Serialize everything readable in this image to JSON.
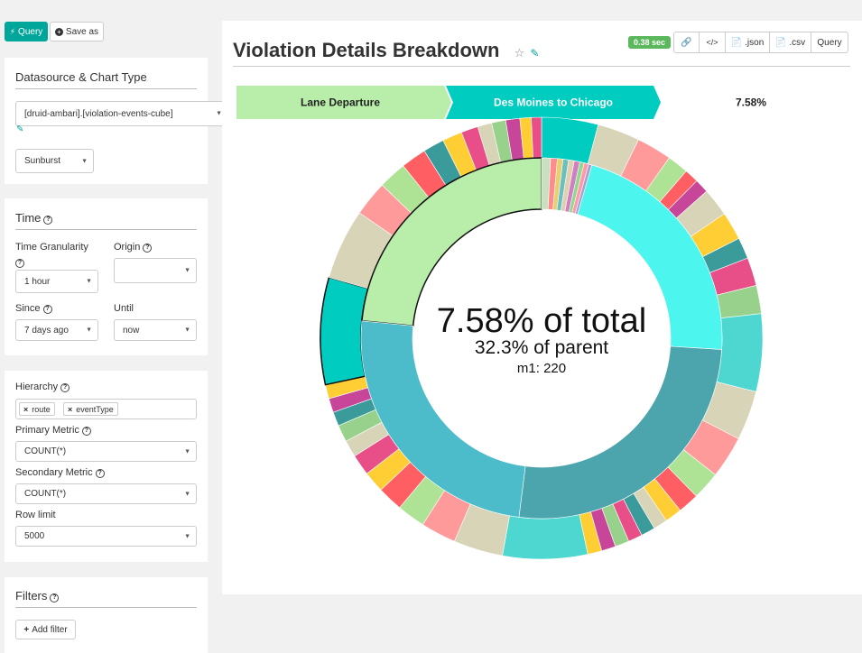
{
  "toolbar": {
    "query_label": "Query",
    "save_as_label": "Save as"
  },
  "datasource_panel": {
    "title": "Datasource & Chart Type",
    "datasource_value": "[druid-ambari].[violation-events-cube]",
    "chart_type_value": "Sunburst"
  },
  "time_panel": {
    "title": "Time",
    "granularity_label": "Time Granularity",
    "granularity_value": "1 hour",
    "origin_label": "Origin",
    "origin_value": "",
    "since_label": "Since",
    "since_value": "7 days ago",
    "until_label": "Until",
    "until_value": "now"
  },
  "query_panel": {
    "hierarchy_label": "Hierarchy",
    "hierarchy_tags": [
      "route",
      "eventType"
    ],
    "primary_metric_label": "Primary Metric",
    "primary_metric_value": "COUNT(*)",
    "secondary_metric_label": "Secondary Metric",
    "secondary_metric_value": "COUNT(*)",
    "row_limit_label": "Row limit",
    "row_limit_value": "5000"
  },
  "filters_panel": {
    "title": "Filters",
    "add_filter_label": "Add filter"
  },
  "chart_header": {
    "title": "Violation Details Breakdown",
    "timing_badge": "0.38 sec",
    "json_label": ".json",
    "csv_label": ".csv",
    "query_label": "Query"
  },
  "colors": {
    "accent": "#00a699",
    "badge": "#5cb85c",
    "breadcrumb_1": "#b9edaa",
    "breadcrumb_2": "#00ccc0"
  },
  "icons": [
    "bolt-icon",
    "plus-circle-icon",
    "pencil-icon",
    "help-icon",
    "star-icon",
    "link-icon",
    "code-icon",
    "file-icon",
    "remove-icon",
    "plus-icon"
  ],
  "chart_data": {
    "type": "sunburst",
    "breadcrumb": [
      "Lane Departure",
      "Des Moines to Chicago"
    ],
    "breadcrumb_percentage": "7.58%",
    "center_primary": "7.58% of total",
    "center_secondary": "32.3% of parent",
    "center_metric": "m1: 220",
    "inner_ring": [
      {
        "name": "Lane Departure",
        "share": 23.47,
        "color": "#b9edaa"
      },
      {
        "name": "",
        "share": 0.8,
        "color": "#c8e0c0"
      },
      {
        "name": "",
        "share": 0.6,
        "color": "#ff8c8c"
      },
      {
        "name": "",
        "share": 0.5,
        "color": "#e8d070"
      },
      {
        "name": "",
        "share": 0.5,
        "color": "#6cbfbf"
      },
      {
        "name": "",
        "share": 0.5,
        "color": "#e0d0b0"
      },
      {
        "name": "",
        "share": 0.5,
        "color": "#d080c0"
      },
      {
        "name": "",
        "share": 0.4,
        "color": "#90d890"
      },
      {
        "name": "",
        "share": 0.4,
        "color": "#ff99aa"
      },
      {
        "name": "",
        "share": 0.3,
        "color": "#aaa0d0"
      },
      {
        "name": "",
        "share": 21.5,
        "color": "#4cf5ed"
      },
      {
        "name": "",
        "share": 26.0,
        "color": "#4ca5ad"
      },
      {
        "name": "",
        "share": 24.53,
        "color": "#4cbcca"
      }
    ],
    "outer_ring": [
      {
        "name": "",
        "share": 4.0,
        "color": "#00ccc0"
      },
      {
        "name": "",
        "share": 3.0,
        "color": "#d8d4b8"
      },
      {
        "name": "",
        "share": 2.5,
        "color": "#ff9a9a"
      },
      {
        "name": "",
        "share": 1.5,
        "color": "#aee396"
      },
      {
        "name": "",
        "share": 1.0,
        "color": "#ff5e62"
      },
      {
        "name": "",
        "share": 1.0,
        "color": "#c84699"
      },
      {
        "name": "",
        "share": 2.0,
        "color": "#d8d4b8"
      },
      {
        "name": "",
        "share": 2.0,
        "color": "#ffcd34"
      },
      {
        "name": "",
        "share": 1.5,
        "color": "#3b9b9a"
      },
      {
        "name": "",
        "share": 2.0,
        "color": "#e84f88"
      },
      {
        "name": "",
        "share": 2.0,
        "color": "#98d18c"
      },
      {
        "name": "",
        "share": 5.5,
        "color": "#4ed7d0"
      },
      {
        "name": "",
        "share": 3.5,
        "color": "#d8d4b8"
      },
      {
        "name": "",
        "share": 3.0,
        "color": "#ff9a9a"
      },
      {
        "name": "",
        "share": 2.0,
        "color": "#aee396"
      },
      {
        "name": "",
        "share": 1.5,
        "color": "#ff5e62"
      },
      {
        "name": "",
        "share": 1.2,
        "color": "#ffcd34"
      },
      {
        "name": "",
        "share": 1.0,
        "color": "#d8d4b8"
      },
      {
        "name": "",
        "share": 1.0,
        "color": "#3b9b9a"
      },
      {
        "name": "",
        "share": 1.0,
        "color": "#e84f88"
      },
      {
        "name": "",
        "share": 1.0,
        "color": "#98d18c"
      },
      {
        "name": "",
        "share": 1.0,
        "color": "#c84699"
      },
      {
        "name": "",
        "share": 1.0,
        "color": "#ffcd34"
      },
      {
        "name": "",
        "share": 6.0,
        "color": "#4ed7d0"
      },
      {
        "name": "",
        "share": 3.5,
        "color": "#d8d4b8"
      },
      {
        "name": "",
        "share": 2.5,
        "color": "#ff9a9a"
      },
      {
        "name": "",
        "share": 2.0,
        "color": "#aee396"
      },
      {
        "name": "",
        "share": 1.8,
        "color": "#ff5e62"
      },
      {
        "name": "",
        "share": 1.5,
        "color": "#ffcd34"
      },
      {
        "name": "",
        "share": 1.5,
        "color": "#e84f88"
      },
      {
        "name": "",
        "share": 1.2,
        "color": "#d8d4b8"
      },
      {
        "name": "",
        "share": 1.2,
        "color": "#98d18c"
      },
      {
        "name": "",
        "share": 1.0,
        "color": "#3b9b9a"
      },
      {
        "name": "",
        "share": 1.0,
        "color": "#c84699"
      },
      {
        "name": "",
        "share": 1.0,
        "color": "#ffcd34"
      },
      {
        "name": "Des Moines to Chicago",
        "share": 7.58,
        "color": "#00ccc0"
      },
      {
        "name": "",
        "share": 5.0,
        "color": "#d8d4b8"
      },
      {
        "name": "",
        "share": 2.5,
        "color": "#ff9a9a"
      },
      {
        "name": "",
        "share": 2.0,
        "color": "#aee396"
      },
      {
        "name": "",
        "share": 1.8,
        "color": "#ff5e62"
      },
      {
        "name": "",
        "share": 1.5,
        "color": "#3b9b9a"
      },
      {
        "name": "",
        "share": 1.4,
        "color": "#ffcd34"
      },
      {
        "name": "",
        "share": 1.2,
        "color": "#e84f88"
      },
      {
        "name": "",
        "share": 1.0,
        "color": "#d8d4b8"
      },
      {
        "name": "",
        "share": 1.0,
        "color": "#98d18c"
      },
      {
        "name": "",
        "share": 1.0,
        "color": "#c84699"
      },
      {
        "name": "",
        "share": 0.8,
        "color": "#ffcd34"
      },
      {
        "name": "",
        "share": 0.72,
        "color": "#e84f88"
      }
    ]
  }
}
